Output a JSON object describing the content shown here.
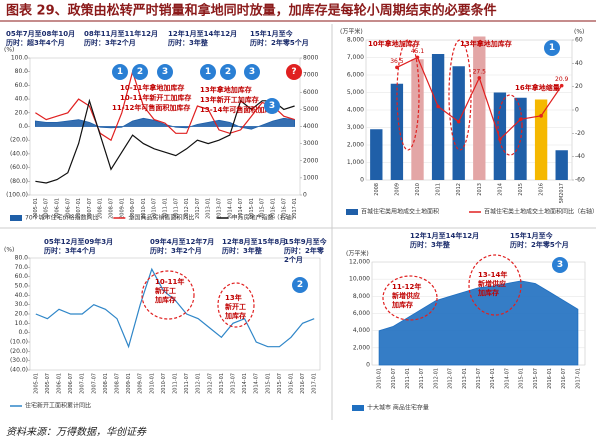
{
  "header": {
    "title": "图表 29、政策由松转严时销量和拿地同时放量，加库存是每轮小周期结束的必要条件"
  },
  "footer": {
    "source": "资料来源：万得数据，华创证券"
  },
  "chart_data": [
    {
      "type": "line",
      "y_label": "(%)",
      "categories": [
        "2005-01",
        "2005-07",
        "2006-01",
        "2006-07",
        "2007-01",
        "2007-07",
        "2008-01",
        "2008-07",
        "2009-01",
        "2009-07",
        "2010-01",
        "2010-07",
        "2011-01",
        "2011-07",
        "2012-01",
        "2012-07",
        "2013-01",
        "2013-07",
        "2014-01",
        "2014-07",
        "2015-01",
        "2015-07",
        "2016-01",
        "2016-07",
        "2017-01"
      ],
      "ylim": [
        -100,
        100
      ],
      "yticks": [
        {
          "value": 100,
          "label": "100.0"
        },
        {
          "value": 80,
          "label": "80.0"
        },
        {
          "value": 60,
          "label": "60.0"
        },
        {
          "value": 40,
          "label": "40.0"
        },
        {
          "value": 20,
          "label": "20.0"
        },
        {
          "value": 0,
          "label": "0.0"
        },
        {
          "value": -20,
          "label": "(20.0)"
        },
        {
          "value": -40,
          "label": "(40.0)"
        },
        {
          "value": -60,
          "label": "(60.0)"
        },
        {
          "value": -80,
          "label": "(80.0)"
        },
        {
          "value": -100,
          "label": "(100.0)"
        }
      ],
      "y2lim": [
        0,
        8000
      ],
      "y2ticks": [
        0,
        1000,
        2000,
        3000,
        4000,
        5000,
        6000,
        7000,
        8000
      ],
      "series": [
        {
          "name": "70个城市住宅价格指数同比",
          "color": "#1f5fa8",
          "style": "area",
          "values": [
            8,
            6,
            6,
            8,
            10,
            6,
            -1,
            -2,
            -1,
            8,
            12,
            9,
            3,
            -1,
            -2,
            3,
            6,
            9,
            6,
            -1,
            -4,
            2,
            8,
            12,
            10
          ]
        },
        {
          "name": "全国商品房销售面积同比",
          "color": "#e02020",
          "style": "line",
          "values": [
            20,
            10,
            15,
            20,
            40,
            30,
            -10,
            -20,
            20,
            80,
            30,
            10,
            5,
            -10,
            -10,
            30,
            25,
            -5,
            -10,
            -5,
            15,
            35,
            30,
            15,
            10
          ]
        },
        {
          "name": "申万房地产指数（右轴）",
          "color": "#111111",
          "style": "line",
          "axis": "y2",
          "values": [
            800,
            700,
            900,
            1300,
            3000,
            5500,
            3500,
            1500,
            2500,
            3500,
            3000,
            2700,
            2500,
            2300,
            2700,
            3200,
            3000,
            3200,
            3500,
            5500,
            5000,
            5500,
            5500,
            5000,
            5200
          ]
        }
      ],
      "periods": [
        [
          "05年7月至08年10月",
          "历时：超3年4个月"
        ],
        [
          "08年11月至11年12月",
          "历时：3年2个月"
        ],
        [
          "12年1月至14年12月",
          "历时：3年整"
        ],
        [
          "15年1月至今",
          "历时：2年零5个月"
        ]
      ],
      "notes": [
        [
          "10-11年拿地加库存"
        ],
        [
          "10-11年新开工加库存"
        ],
        [
          "11-12年可售面积加库存"
        ],
        [
          "13年拿地加库存"
        ],
        [
          "13年新开工加库存"
        ],
        [
          "13-14年可售面积加库存"
        ]
      ],
      "badges": [
        "1",
        "2",
        "3",
        "1",
        "2",
        "3",
        "3",
        "?"
      ]
    },
    {
      "type": "bar",
      "y_label": "(万平米)",
      "y2_label": "(%)",
      "categories": [
        "2008",
        "2009",
        "2010",
        "2011",
        "2012",
        "2013",
        "2014",
        "2015",
        "2016",
        "5M2017"
      ],
      "ylim": [
        0,
        8000
      ],
      "yticks": [
        0,
        {
          "value": 1000,
          "label": "1,000"
        },
        {
          "value": 2000,
          "label": "2,000"
        },
        {
          "value": 3000,
          "label": "3,000"
        },
        {
          "value": 4000,
          "label": "4,000"
        },
        {
          "value": 5000,
          "label": "5,000"
        },
        {
          "value": 6000,
          "label": "6,000"
        },
        {
          "value": 7000,
          "label": "7,000"
        },
        {
          "value": 8000,
          "label": "8,000"
        }
      ],
      "y2lim": [
        -60,
        60
      ],
      "y2ticks": [
        -60,
        -40,
        -20,
        0,
        20,
        40,
        60
      ],
      "series": [
        {
          "name": "百城住宅类用地成交土地面积",
          "color": "#1f5fa8",
          "style": "bar",
          "values": [
            2900,
            5500,
            6900,
            7200,
            6500,
            8200,
            5000,
            4700,
            4600,
            1700
          ],
          "highlight_colors": [
            "#1f5fa8",
            "#1f5fa8",
            "#e3a6a6",
            "#1f5fa8",
            "#1f5fa8",
            "#e3a6a6",
            "#1f5fa8",
            "#1f5fa8",
            "#f5b800",
            "#1f5fa8"
          ]
        },
        {
          "name": "百城住宅类土地成交土地面积同比（右轴）",
          "color": "#e02020",
          "style": "line",
          "axis": "y2",
          "values": [
            null,
            36.5,
            45.1,
            3,
            -10,
            27.5,
            -25,
            -8,
            -5,
            20.9
          ],
          "value_labels": [
            null,
            "36.5",
            "45.1",
            null,
            null,
            "27.5",
            null,
            null,
            null,
            "20.9"
          ]
        }
      ],
      "notes": [
        [
          "10年拿地加库存"
        ],
        [
          "13年拿地加库存"
        ],
        [
          "16年拿地缩量"
        ]
      ],
      "badges": [
        "1"
      ]
    },
    {
      "type": "line",
      "y_label": "(%)",
      "categories": [
        "2005-01",
        "2005-07",
        "2006-01",
        "2006-07",
        "2007-01",
        "2007-07",
        "2008-01",
        "2008-07",
        "2009-01",
        "2009-07",
        "2010-01",
        "2010-07",
        "2011-01",
        "2011-07",
        "2012-01",
        "2012-07",
        "2013-01",
        "2013-07",
        "2014-01",
        "2014-07",
        "2015-01",
        "2015-07",
        "2016-01",
        "2016-07",
        "2017-01"
      ],
      "ylim": [
        -40,
        80
      ],
      "yticks": [
        {
          "value": 80,
          "label": "80.0"
        },
        {
          "value": 70,
          "label": "70.0"
        },
        {
          "value": 60,
          "label": "60.0"
        },
        {
          "value": 50,
          "label": "50.0"
        },
        {
          "value": 40,
          "label": "40.0"
        },
        {
          "value": 30,
          "label": "30.0"
        },
        {
          "value": 20,
          "label": "20.0"
        },
        {
          "value": 10,
          "label": "10.0"
        },
        {
          "value": 0,
          "label": "0.0"
        },
        {
          "value": -10,
          "label": "(10.0)"
        },
        {
          "value": -20,
          "label": "(20.0)"
        },
        {
          "value": -30,
          "label": "(30.0)"
        },
        {
          "value": -40,
          "label": "(40.0)"
        }
      ],
      "series": [
        {
          "name": "住宅新开工面积累计同比",
          "color": "#2f86c8",
          "style": "line",
          "values": [
            20,
            15,
            25,
            20,
            20,
            30,
            25,
            15,
            -15,
            30,
            68,
            45,
            35,
            20,
            15,
            5,
            -5,
            10,
            15,
            -10,
            -15,
            -15,
            -5,
            10,
            15
          ]
        }
      ],
      "periods": [
        [
          "05年12月至09年3月",
          "历时：3年4个月"
        ],
        [
          "09年4月至12年7月",
          "历时：3年2个月"
        ],
        [
          "12年8月至15年8月",
          "历时：3年整"
        ],
        [
          "15年9月至今",
          "历时：2年零",
          "2个月"
        ]
      ],
      "notes": [
        [
          "10-11年",
          "新开工",
          "加库存"
        ],
        [
          "13年",
          "新开工",
          "加库存"
        ]
      ],
      "badges": [
        "2"
      ]
    },
    {
      "type": "area",
      "y_label": "(万平米)",
      "categories": [
        "2010-01",
        "2010-07",
        "2011-01",
        "2011-07",
        "2012-01",
        "2012-07",
        "2013-01",
        "2013-07",
        "2014-01",
        "2014-07",
        "2015-01",
        "2015-07",
        "2016-01",
        "2016-07",
        "2017-01"
      ],
      "ylim": [
        0,
        12000
      ],
      "yticks": [
        0,
        {
          "value": 2000,
          "label": "2,000"
        },
        {
          "value": 4000,
          "label": "4,000"
        },
        {
          "value": 6000,
          "label": "6,000"
        },
        {
          "value": 8000,
          "label": "8,000"
        },
        {
          "value": 10000,
          "label": "10,000"
        },
        {
          "value": 12000,
          "label": "12,000"
        }
      ],
      "series": [
        {
          "name": "十大城市 商品住宅存量",
          "color": "#1f6fc0",
          "style": "area",
          "values": [
            4000,
            4500,
            5500,
            6500,
            7500,
            8000,
            8500,
            9000,
            9200,
            9500,
            9800,
            9500,
            8500,
            7500,
            6500
          ]
        }
      ],
      "periods": [
        [
          "12年1月至14年12月",
          "历时：3年整"
        ],
        [
          "15年1月至今",
          "历时：2年零5个月"
        ]
      ],
      "notes": [
        [
          "11-12年",
          "新增供应",
          "加库存"
        ],
        [
          "13-14年",
          "新增供应",
          "加库存"
        ]
      ],
      "badges": [
        "3"
      ]
    }
  ]
}
